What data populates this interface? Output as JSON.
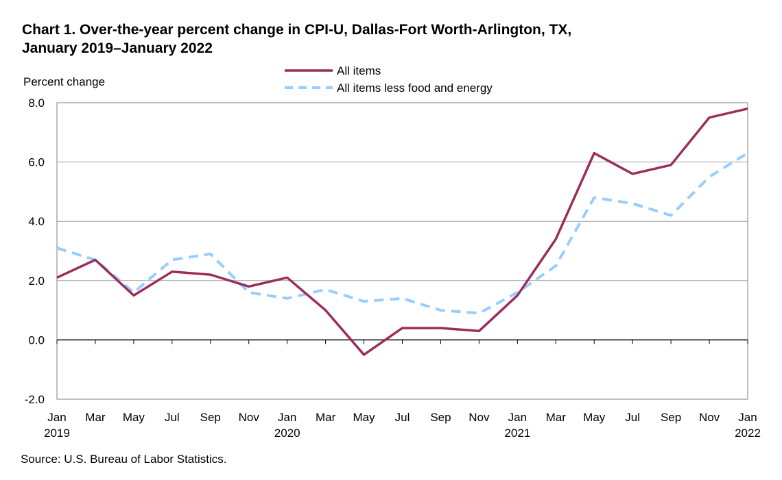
{
  "chart_data": {
    "type": "line",
    "title": "Chart 1. Over-the-year percent change in CPI-U, Dallas-Fort Worth-Arlington, TX, January 2019–January 2022",
    "title_lines": [
      "Chart 1. Over-the-year percent change in CPI-U, Dallas-Fort Worth-Arlington, TX,",
      "January 2019–January 2022"
    ],
    "ylabel": "Percent change",
    "ylim": [
      -2.0,
      8.0
    ],
    "yticks": [
      "8.0",
      "6.0",
      "4.0",
      "2.0",
      "0.0",
      "-2.0"
    ],
    "grid": true,
    "legend": "top-center",
    "x": [
      "Jan 2019",
      "Mar 2019",
      "May 2019",
      "Jul 2019",
      "Sep 2019",
      "Nov 2019",
      "Jan 2020",
      "Mar 2020",
      "May 2020",
      "Jul 2020",
      "Sep 2020",
      "Nov 2020",
      "Jan 2021",
      "Mar 2021",
      "May 2021",
      "Jul 2021",
      "Sep 2021",
      "Nov 2021",
      "Jan 2022"
    ],
    "xtick_labels": [
      [
        "Jan",
        "2019"
      ],
      [
        "Mar",
        ""
      ],
      [
        "May",
        ""
      ],
      [
        "Jul",
        ""
      ],
      [
        "Sep",
        ""
      ],
      [
        "Nov",
        ""
      ],
      [
        "Jan",
        "2020"
      ],
      [
        "Mar",
        ""
      ],
      [
        "May",
        ""
      ],
      [
        "Jul",
        ""
      ],
      [
        "Sep",
        ""
      ],
      [
        "Nov",
        ""
      ],
      [
        "Jan",
        "2021"
      ],
      [
        "Mar",
        ""
      ],
      [
        "May",
        ""
      ],
      [
        "Jul",
        ""
      ],
      [
        "Sep",
        ""
      ],
      [
        "Nov",
        ""
      ],
      [
        "Jan",
        "2022"
      ]
    ],
    "series": [
      {
        "name": "All items",
        "color": "#9b2d5c",
        "style": "solid",
        "values": [
          2.1,
          2.7,
          1.5,
          2.3,
          2.2,
          1.8,
          2.1,
          1.0,
          -0.5,
          0.4,
          0.4,
          0.3,
          1.5,
          3.4,
          6.3,
          5.6,
          5.9,
          7.5,
          7.8
        ]
      },
      {
        "name": "All items less food and energy",
        "color": "#99ccff",
        "style": "dashed",
        "values": [
          3.1,
          2.7,
          1.6,
          2.7,
          2.9,
          1.6,
          1.4,
          1.7,
          1.3,
          1.4,
          1.0,
          0.9,
          1.6,
          2.5,
          4.8,
          4.6,
          4.2,
          5.5,
          6.3
        ]
      }
    ],
    "source": "Source: U.S. Bureau of Labor Statistics."
  }
}
